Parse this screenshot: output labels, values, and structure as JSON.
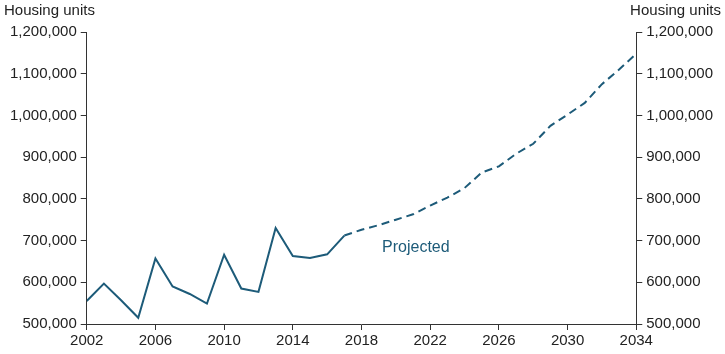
{
  "chart_data": {
    "type": "line",
    "y_label": "Housing units",
    "y2_label": "Housing units",
    "x": [
      2002,
      2003,
      2004,
      2005,
      2006,
      2007,
      2008,
      2009,
      2010,
      2011,
      2012,
      2013,
      2014,
      2015,
      2016,
      2017,
      2018,
      2019,
      2020,
      2021,
      2022,
      2023,
      2024,
      2025,
      2026,
      2027,
      2028,
      2029,
      2030,
      2031,
      2032,
      2033,
      2034
    ],
    "series": [
      {
        "color": "#1d5b79",
        "line_style": "solid",
        "values": [
          555000,
          597000,
          557000,
          515000,
          657000,
          590000,
          572000,
          549000,
          666000,
          585000,
          577000,
          730000,
          663000,
          658000,
          667000,
          712000,
          null,
          null,
          null,
          null,
          null,
          null,
          null,
          null,
          null,
          null,
          null,
          null,
          null,
          null,
          null,
          null,
          null
        ]
      },
      {
        "name": "Projected",
        "color": "#1d5b79",
        "line_style": "dashed",
        "values": [
          null,
          null,
          null,
          null,
          null,
          null,
          null,
          null,
          null,
          null,
          null,
          null,
          null,
          null,
          null,
          712000,
          726000,
          737000,
          750000,
          763000,
          784000,
          803000,
          826000,
          863000,
          878000,
          908000,
          932000,
          975000,
          1002000,
          1030000,
          1075000,
          1110000,
          1148000
        ]
      }
    ],
    "xlim": [
      2002,
      2034
    ],
    "xticks": [
      2002,
      2006,
      2010,
      2014,
      2018,
      2022,
      2026,
      2030,
      2034
    ],
    "ylim": [
      500000,
      1200000
    ],
    "yticks": [
      {
        "value": 500000,
        "label": "500,000"
      },
      {
        "value": 600000,
        "label": "600,000"
      },
      {
        "value": 700000,
        "label": "700,000"
      },
      {
        "value": 800000,
        "label": "800,000"
      },
      {
        "value": 900000,
        "label": "900,000"
      },
      {
        "value": 1000000,
        "label": "1,000,000"
      },
      {
        "value": 1100000,
        "label": "1,100,000"
      },
      {
        "value": 1200000,
        "label": "1,200,000"
      }
    ],
    "y2lim": [
      500000,
      1200000
    ],
    "y2ticks": [
      {
        "value": 500000,
        "label": "500,000"
      },
      {
        "value": 600000,
        "label": "600,000"
      },
      {
        "value": 700000,
        "label": "700,000"
      },
      {
        "value": 800000,
        "label": "800,000"
      },
      {
        "value": 900000,
        "label": "900,000"
      },
      {
        "value": 1000000,
        "label": "1,000,000"
      },
      {
        "value": 1100000,
        "label": "1,100,000"
      },
      {
        "value": 1200000,
        "label": "1,200,000"
      }
    ],
    "grid": false
  }
}
